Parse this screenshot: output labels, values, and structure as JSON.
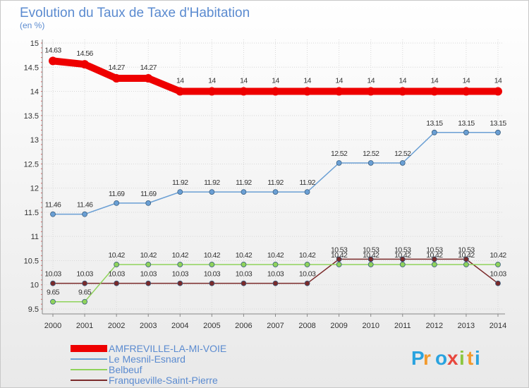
{
  "chart_data": {
    "type": "line",
    "title": "Evolution du Taux de Taxe d'Habitation",
    "subtitle": "(en %)",
    "x": [
      "2000",
      "2001",
      "2002",
      "2003",
      "2004",
      "2005",
      "2006",
      "2007",
      "2008",
      "2009",
      "2010",
      "2011",
      "2012",
      "2013",
      "2014"
    ],
    "ylim": [
      9.5,
      15
    ],
    "yticks": [
      "9.5",
      "10",
      "10.5",
      "11",
      "11.5",
      "12",
      "12.5",
      "13",
      "13.5",
      "14",
      "14.5",
      "15"
    ],
    "grid": true,
    "legend_position": "bottom-left",
    "series": [
      {
        "name": "AMFREVILLE-LA-MI-VOIE",
        "color": "#ee0000",
        "values": [
          14.63,
          14.56,
          14.27,
          14.27,
          14,
          14,
          14,
          14,
          14,
          14,
          14,
          14,
          14,
          14,
          14
        ],
        "labels": [
          "14.63",
          "14.56",
          "14.27",
          "14.27",
          "14",
          "14",
          "14",
          "14",
          "14",
          "14",
          "14",
          "14",
          "14",
          "14",
          "14"
        ]
      },
      {
        "name": "Le Mesnil-Esnard",
        "color": "#6a9fd4",
        "values": [
          11.46,
          11.46,
          11.69,
          11.69,
          11.92,
          11.92,
          11.92,
          11.92,
          11.92,
          12.52,
          12.52,
          12.52,
          13.15,
          13.15,
          13.15
        ],
        "labels": [
          "11.46",
          "11.46",
          "11.69",
          "11.69",
          "11.92",
          "11.92",
          "11.92",
          "11.92",
          "11.92",
          "12.52",
          "12.52",
          "12.52",
          "13.15",
          "13.15",
          "13.15"
        ]
      },
      {
        "name": "Belbeuf",
        "color": "#8fd35a",
        "values": [
          9.65,
          9.65,
          10.42,
          10.42,
          10.42,
          10.42,
          10.42,
          10.42,
          10.42,
          10.42,
          10.42,
          10.42,
          10.42,
          10.42,
          10.42
        ],
        "labels": [
          "9.65",
          "9.65",
          "10.42",
          "10.42",
          "10.42",
          "10.42",
          "10.42",
          "10.42",
          "10.42",
          "10.42",
          "10.42",
          "10.42",
          "10.42",
          "10.42",
          "10.42"
        ]
      },
      {
        "name": "Franqueville-Saint-Pierre",
        "color": "#7a2a2a",
        "values": [
          10.03,
          10.03,
          10.03,
          10.03,
          10.03,
          10.03,
          10.03,
          10.03,
          10.03,
          10.53,
          10.53,
          10.53,
          10.53,
          10.53,
          10.03
        ],
        "labels": [
          "10.03",
          "10.03",
          "10.03",
          "10.03",
          "10.03",
          "10.03",
          "10.03",
          "10.03",
          "10.03",
          "10.53",
          "10.53",
          "10.53",
          "10.53",
          "10.53",
          "10.03"
        ]
      }
    ]
  },
  "logo": {
    "letters": [
      "P",
      "r",
      "o",
      "x",
      "i",
      "t",
      "i"
    ],
    "colors": [
      "#2aa3df",
      "#f29a2e",
      "#2aa3df",
      "#e8473e",
      "#8cc63f",
      "#f29a2e",
      "#2aa3df"
    ]
  }
}
